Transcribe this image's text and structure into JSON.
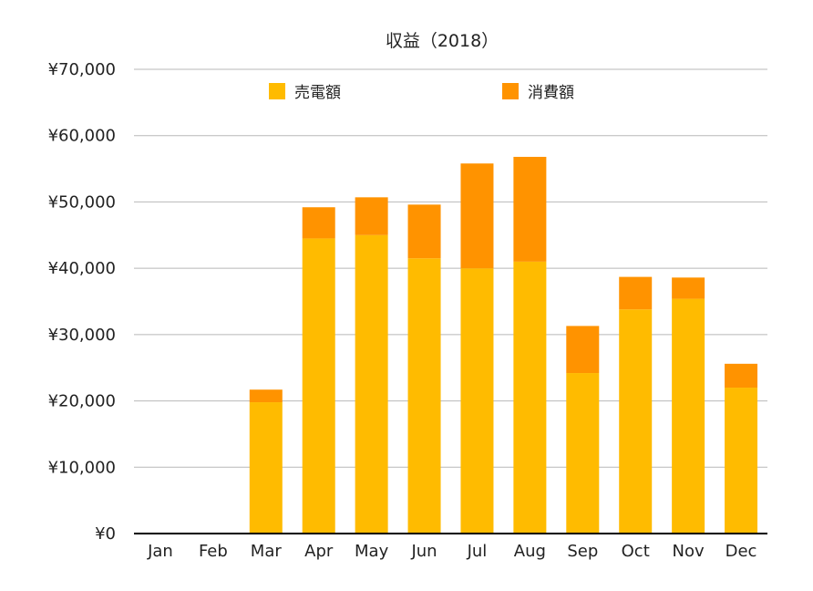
{
  "chart_data": {
    "type": "bar",
    "stacked": true,
    "title": "収益（2018）",
    "xlabel": "",
    "ylabel": "",
    "categories": [
      "Jan",
      "Feb",
      "Mar",
      "Apr",
      "May",
      "Jun",
      "Jul",
      "Aug",
      "Sep",
      "Oct",
      "Nov",
      "Dec"
    ],
    "series": [
      {
        "name": "売電額",
        "color": "#FFBB00",
        "values": [
          0,
          0,
          19800,
          44500,
          45000,
          41500,
          40000,
          41000,
          24200,
          33800,
          35400,
          22000
        ]
      },
      {
        "name": "消費額",
        "color": "#FF9300",
        "values": [
          0,
          0,
          1900,
          4700,
          5700,
          8100,
          15800,
          15800,
          7100,
          4900,
          3200,
          3600
        ]
      }
    ],
    "ylim": [
      0,
      70000
    ],
    "yticks": [
      0,
      10000,
      20000,
      30000,
      40000,
      50000,
      60000,
      70000
    ],
    "ytick_labels": [
      "¥0",
      "¥10,000",
      "¥20,000",
      "¥30,000",
      "¥40,000",
      "¥50,000",
      "¥60,000",
      "¥70,000"
    ],
    "grid": true,
    "legend_position": "top"
  }
}
